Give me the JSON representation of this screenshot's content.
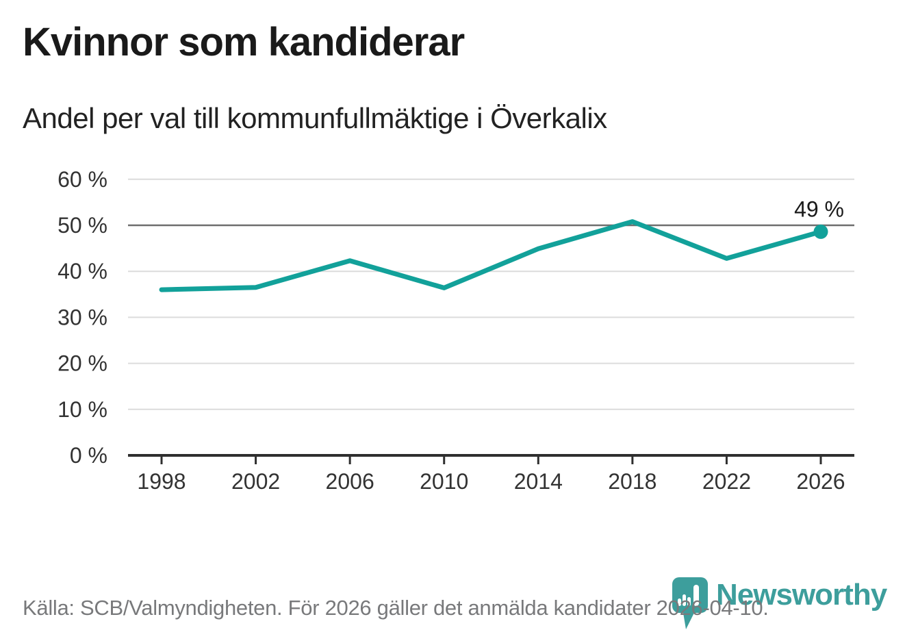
{
  "header": {
    "title": "Kvinnor som kandiderar",
    "subtitle": "Andel per val till kommunfullmäktige i Överkalix"
  },
  "chart_data": {
    "type": "line",
    "title": "Kvinnor som kandiderar",
    "subtitle": "Andel per val till kommunfullmäktige i Överkalix",
    "categories": [
      "1998",
      "2002",
      "2006",
      "2010",
      "2014",
      "2018",
      "2022",
      "2026"
    ],
    "x_years": [
      1998,
      2002,
      2006,
      2010,
      2014,
      2018,
      2022,
      2026
    ],
    "series": [
      {
        "name": "Kvinnor som kandiderar",
        "values": [
          36.0,
          36.5,
          42.3,
          36.4,
          44.9,
          50.8,
          42.8,
          48.6
        ]
      }
    ],
    "xlabel": "",
    "ylabel": "",
    "ylim": [
      0,
      60
    ],
    "yticks": [
      {
        "value": 0,
        "label": "0 %"
      },
      {
        "value": 10,
        "label": "10 %"
      },
      {
        "value": 20,
        "label": "20 %"
      },
      {
        "value": 30,
        "label": "30 %"
      },
      {
        "value": 40,
        "label": "40 %"
      },
      {
        "value": 50,
        "label": "50 %"
      },
      {
        "value": 60,
        "label": "60 %"
      }
    ],
    "grid": true,
    "legend": "none",
    "reference_line_value": 50,
    "endpoint_dot_x": 2026,
    "annotation": {
      "x": 2026,
      "label": "49 %"
    },
    "colors": {
      "line": "#12a19a",
      "grid": "#dcdcdc",
      "reference_line": "#6e6e6e",
      "axis": "#2f2f2f",
      "tick_text": "#333333",
      "annotation_text": "#1a1a1a"
    }
  },
  "footer": {
    "source": "Källa: SCB/Valmyndigheten. För 2026 gäller det anmälda kandidater 2026-04-10."
  },
  "branding": {
    "wordmark": "Newsworthy",
    "logo_icon": "bar-chart-badge-icon",
    "color": "#3d9e9c"
  }
}
